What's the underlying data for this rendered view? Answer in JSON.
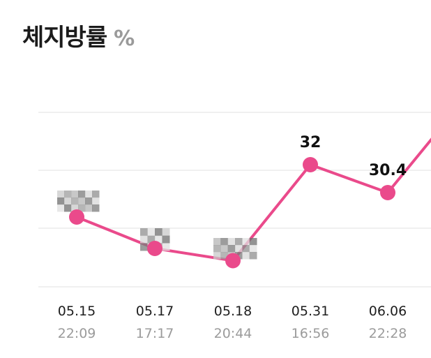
{
  "header": {
    "title": "체지방률",
    "unit": "%"
  },
  "colors": {
    "line": "#ea4a8b",
    "grid": "#ececec",
    "blur_mosaic": "#8a8a8a"
  },
  "chart_data": {
    "type": "line",
    "title": "체지방률",
    "unit": "%",
    "categories": [
      "05.15",
      "05.17",
      "05.18",
      "05.31",
      "06.06"
    ],
    "times": [
      "22:09",
      "17:17",
      "20:44",
      "16:56",
      "22:28"
    ],
    "values": [
      29.0,
      27.2,
      26.5,
      32,
      30.4
    ],
    "data_labels": [
      "",
      "",
      "",
      "32",
      "30.4"
    ],
    "obscured_labels": [
      true,
      true,
      true,
      false,
      false
    ],
    "next_value_offscreen": 34.5,
    "ylim": [
      25,
      35
    ],
    "grid": true
  }
}
